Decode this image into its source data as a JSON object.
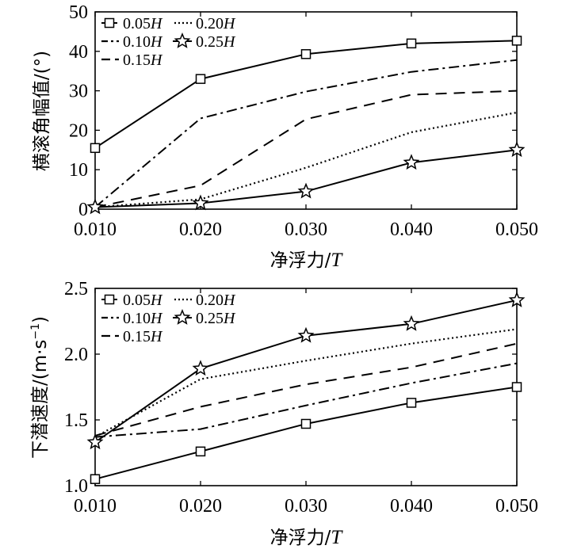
{
  "chart_data": [
    {
      "type": "line",
      "x": [
        0.01,
        0.02,
        0.03,
        0.04,
        0.05
      ],
      "x_tick_labels": [
        "0.010",
        "0.020",
        "0.030",
        "0.040",
        "0.050"
      ],
      "xlim": [
        0.01,
        0.05
      ],
      "ylim": [
        0,
        50
      ],
      "y_ticks": [
        0,
        10,
        20,
        30,
        40,
        50
      ],
      "y_tick_labels": [
        "0",
        "10",
        "20",
        "30",
        "40",
        "50"
      ],
      "xlabel": "净浮力/",
      "xlabel_unit": "T",
      "ylabel": "横滚角幅值/(°)",
      "series": [
        {
          "name": "0.05",
          "unit": "H",
          "style": "solid-square",
          "values": [
            15.5,
            33.0,
            39.3,
            42.0,
            42.7
          ]
        },
        {
          "name": "0.10",
          "unit": "H",
          "style": "dashdot",
          "values": [
            0.5,
            23.0,
            29.8,
            34.8,
            37.8
          ]
        },
        {
          "name": "0.15",
          "unit": "H",
          "style": "dashed",
          "values": [
            0.5,
            6.0,
            22.8,
            29.0,
            30.0
          ]
        },
        {
          "name": "0.20",
          "unit": "H",
          "style": "dotted",
          "values": [
            0.5,
            2.5,
            10.5,
            19.5,
            24.5
          ]
        },
        {
          "name": "0.25",
          "unit": "H",
          "style": "solid-star",
          "values": [
            0.5,
            1.5,
            4.5,
            11.8,
            15.0
          ]
        }
      ],
      "legend_position": "top-left"
    },
    {
      "type": "line",
      "x": [
        0.01,
        0.02,
        0.03,
        0.04,
        0.05
      ],
      "x_tick_labels": [
        "0.010",
        "0.020",
        "0.030",
        "0.040",
        "0.050"
      ],
      "xlim": [
        0.01,
        0.05
      ],
      "ylim": [
        1.0,
        2.5
      ],
      "y_ticks": [
        1.0,
        1.5,
        2.0,
        2.5
      ],
      "y_tick_labels": [
        "1.0",
        "1.5",
        "2.0",
        "2.5"
      ],
      "xlabel": "净浮力/",
      "xlabel_unit": "T",
      "ylabel": "下潜速度/(m·s",
      "ylabel_sup": "−1",
      "ylabel_end": ")",
      "series": [
        {
          "name": "0.05",
          "unit": "H",
          "style": "solid-square",
          "values": [
            1.05,
            1.26,
            1.47,
            1.63,
            1.75
          ]
        },
        {
          "name": "0.10",
          "unit": "H",
          "style": "dashdot",
          "values": [
            1.37,
            1.43,
            1.61,
            1.78,
            1.93
          ]
        },
        {
          "name": "0.15",
          "unit": "H",
          "style": "dashed",
          "values": [
            1.38,
            1.6,
            1.77,
            1.9,
            2.08
          ]
        },
        {
          "name": "0.20",
          "unit": "H",
          "style": "dotted",
          "values": [
            1.37,
            1.81,
            1.95,
            2.08,
            2.19
          ]
        },
        {
          "name": "0.25",
          "unit": "H",
          "style": "solid-star",
          "values": [
            1.33,
            1.89,
            2.14,
            2.23,
            2.41
          ]
        }
      ],
      "legend_position": "top-left"
    }
  ]
}
